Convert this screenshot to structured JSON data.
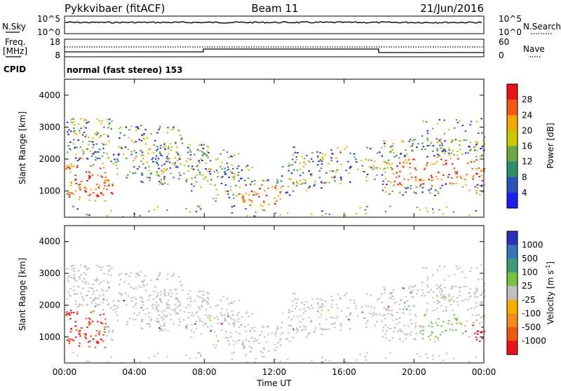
{
  "header": {
    "station": "Pykkvibaer (fitACF)",
    "beam": "Beam 11",
    "date": "21/Jun/2016"
  },
  "noise_panel": {
    "left_label": "N.Sky",
    "right_label": "N.Search",
    "left_ticks": [
      "10^5",
      "10^0"
    ],
    "right_ticks": [
      "10^5",
      "10^0"
    ]
  },
  "freq_panel": {
    "left_label_1": "Freq.",
    "left_label_2": "[MHz]",
    "left_ticks": [
      "18",
      "8"
    ],
    "right_label": "Nave",
    "right_ticks": [
      "60",
      "0"
    ]
  },
  "cpid_panel": {
    "label": "CPID",
    "mode": "normal (fast stereo) 153"
  },
  "chart_data": [
    {
      "type": "heatmap",
      "name": "power",
      "ylabel": "Slant Range [km]",
      "yticks": [
        "4000",
        "3000",
        "2000",
        "1000"
      ],
      "ylim": [
        180,
        4500
      ],
      "xticks": [
        "00:00",
        "04:00",
        "08:00",
        "12:00",
        "16:00",
        "20:00",
        "00:00"
      ],
      "xlim": [
        0,
        24
      ],
      "colorbar": {
        "label": "Power [dB]",
        "ticks": [
          "28",
          "24",
          "20",
          "16",
          "12",
          "8",
          "4"
        ],
        "colors": [
          "#e8121a",
          "#f25a10",
          "#f5a800",
          "#c8c800",
          "#67a845",
          "#2f8f6a",
          "#2b52b8",
          "#1e1ef0"
        ]
      }
    },
    {
      "type": "heatmap",
      "name": "velocity",
      "ylabel": "Slant Range [km]",
      "yticks": [
        "4000",
        "3000",
        "2000",
        "1000"
      ],
      "ylim": [
        180,
        4500
      ],
      "xticks": [
        "00:00",
        "04:00",
        "08:00",
        "12:00",
        "16:00",
        "20:00",
        "00:00"
      ],
      "xlim": [
        0,
        24
      ],
      "xlabel": "Time UT",
      "colorbar": {
        "label": "Velocity [m s^-1]",
        "ticks": [
          "1000",
          "500",
          "100",
          "25",
          "-25",
          "-100",
          "-500",
          "-1000"
        ],
        "colors": [
          "#2e2eb8",
          "#3a73b8",
          "#3d9c73",
          "#7ac142",
          "#c0c0c0",
          "#f2b000",
          "#f28a1a",
          "#ec5a10",
          "#e8121a"
        ]
      }
    }
  ]
}
